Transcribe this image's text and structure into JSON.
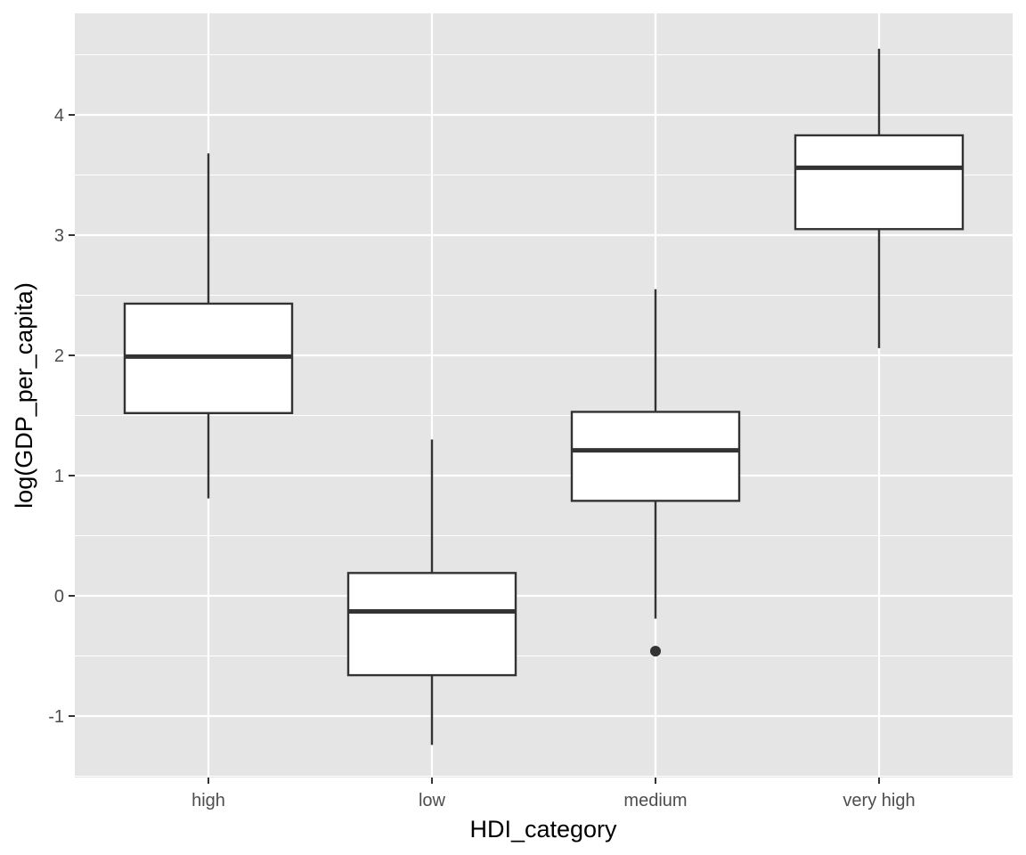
{
  "chart_data": {
    "type": "boxplot",
    "title": "",
    "xlabel": "HDI_category",
    "ylabel": "log(GDP_per_capita)",
    "ylim": [
      -1.5,
      4.6
    ],
    "y_ticks": [
      -1,
      0,
      1,
      2,
      3,
      4
    ],
    "y_tick_labels": [
      "-1",
      "0",
      "1",
      "2",
      "3",
      "4"
    ],
    "categories": [
      "high",
      "low",
      "medium",
      "very high"
    ],
    "boxes": [
      {
        "category": "high",
        "whisker_low": 0.81,
        "q1": 1.52,
        "median": 1.99,
        "q3": 2.43,
        "whisker_high": 3.68,
        "outliers": []
      },
      {
        "category": "low",
        "whisker_low": -1.24,
        "q1": -0.66,
        "median": -0.13,
        "q3": 0.19,
        "whisker_high": 1.3,
        "outliers": []
      },
      {
        "category": "medium",
        "whisker_low": -0.19,
        "q1": 0.79,
        "median": 1.21,
        "q3": 1.53,
        "whisker_high": 2.55,
        "outliers": [
          -0.46
        ]
      },
      {
        "category": "very high",
        "whisker_low": 2.06,
        "q1": 3.05,
        "median": 3.56,
        "q3": 3.83,
        "whisker_high": 4.55,
        "outliers": []
      }
    ],
    "grid": true,
    "colors": {
      "panel": "#e5e5e5",
      "grid": "#ffffff",
      "box_fill": "#ffffff",
      "box_line": "#333333",
      "tick_text": "#4d4d4d"
    }
  }
}
